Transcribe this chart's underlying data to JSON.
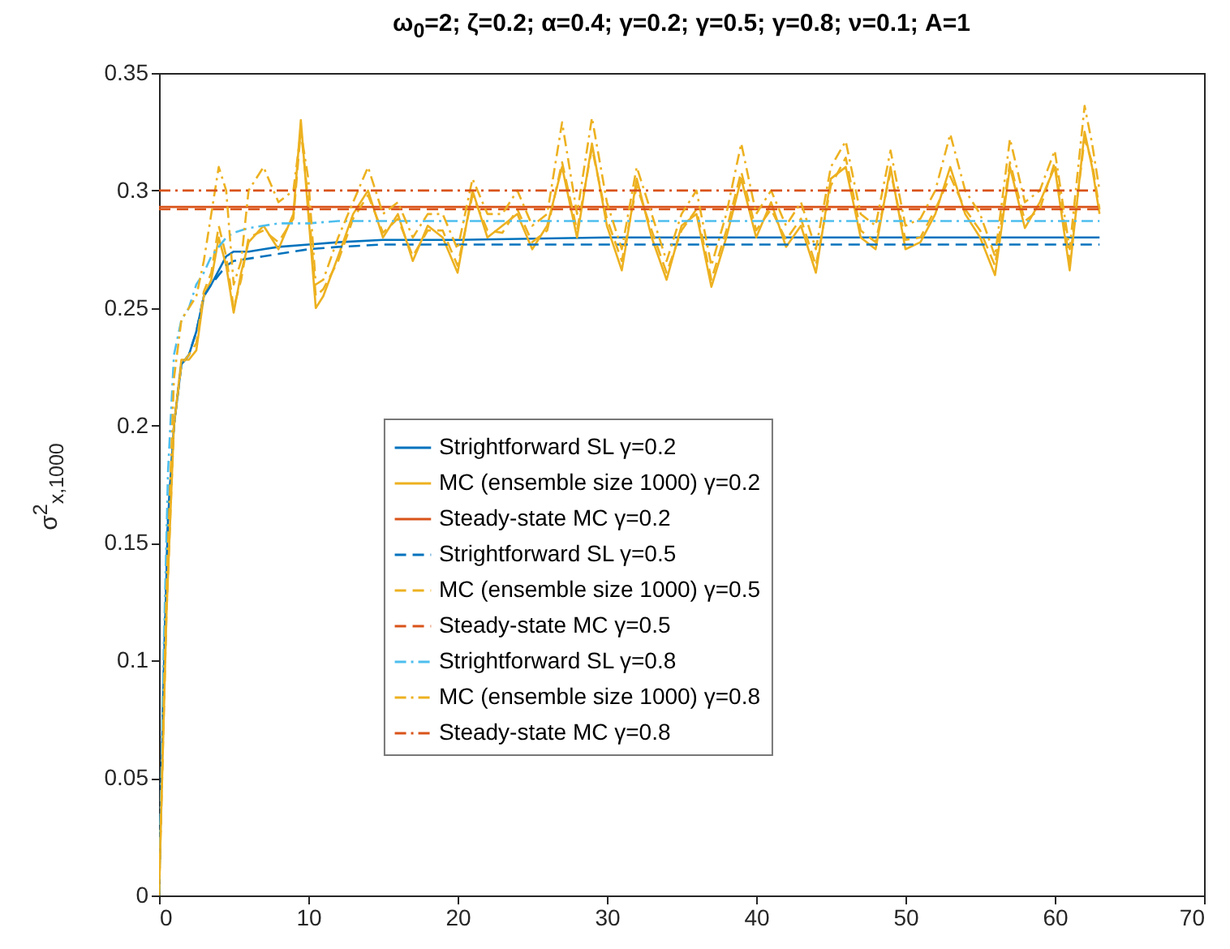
{
  "chart_data": {
    "type": "line",
    "title": "ω$_{0}$=2; ζ=0.2; α=0.4; γ=0.2; γ=0.5; γ=0.8; ν=0.1; A=1",
    "ylabel": "σ$^{2}$$_{x,1000}$",
    "xlim": [
      0,
      70
    ],
    "xticks": [
      0,
      10,
      20,
      30,
      40,
      50,
      60,
      70
    ],
    "ylim": [
      0,
      0.35
    ],
    "yticks": [
      0,
      0.05,
      0.1,
      0.15,
      0.2,
      0.25,
      0.3,
      0.35
    ],
    "grid": false,
    "legend": "bottom",
    "marker": "none",
    "series": [
      {
        "name": "Strightforward SL γ=0.2",
        "color": "#0072bd",
        "line_style": "solid",
        "x": [
          0,
          0.3,
          0.6,
          1,
          1.5,
          2,
          2.5,
          3,
          3.5,
          4,
          4.5,
          5,
          6,
          7,
          8,
          10,
          12,
          15,
          20,
          30,
          40,
          63
        ],
        "values": [
          0,
          0.09,
          0.16,
          0.2,
          0.226,
          0.23,
          0.24,
          0.255,
          0.26,
          0.266,
          0.272,
          0.274,
          0.274,
          0.275,
          0.276,
          0.277,
          0.278,
          0.279,
          0.279,
          0.28,
          0.28,
          0.28
        ]
      },
      {
        "name": "MC (ensemble size 1000) γ=0.2",
        "color": "#edb120",
        "line_style": "solid",
        "x": [
          0,
          0.5,
          1,
          1.5,
          2,
          2.5,
          3,
          3.5,
          4,
          4.5,
          5,
          5.5,
          6,
          7,
          8,
          9,
          9.5,
          10,
          10.5,
          11,
          12,
          13,
          14,
          15,
          16,
          17,
          18,
          19,
          20,
          21,
          22,
          23,
          24,
          25,
          26,
          27,
          28,
          29,
          30,
          31,
          32,
          33,
          34,
          35,
          36,
          37,
          38,
          39,
          40,
          41,
          42,
          43,
          44,
          45,
          46,
          47,
          48,
          49,
          50,
          51,
          52,
          53,
          54,
          55,
          56,
          57,
          58,
          59,
          60,
          61,
          62,
          62.5,
          63
        ],
        "values": [
          0,
          0.12,
          0.2,
          0.228,
          0.228,
          0.232,
          0.255,
          0.262,
          0.28,
          0.268,
          0.248,
          0.265,
          0.278,
          0.285,
          0.275,
          0.29,
          0.33,
          0.29,
          0.25,
          0.255,
          0.272,
          0.29,
          0.3,
          0.28,
          0.29,
          0.27,
          0.285,
          0.28,
          0.265,
          0.3,
          0.28,
          0.285,
          0.29,
          0.275,
          0.285,
          0.31,
          0.28,
          0.32,
          0.285,
          0.266,
          0.305,
          0.28,
          0.262,
          0.285,
          0.29,
          0.259,
          0.28,
          0.305,
          0.28,
          0.295,
          0.276,
          0.285,
          0.265,
          0.305,
          0.31,
          0.28,
          0.275,
          0.31,
          0.275,
          0.278,
          0.29,
          0.31,
          0.29,
          0.28,
          0.264,
          0.31,
          0.284,
          0.295,
          0.31,
          0.266,
          0.325,
          0.31,
          0.29
        ]
      },
      {
        "name": "Steady-state MC γ=0.2",
        "color": "#d95319",
        "line_style": "solid",
        "x": [
          0,
          63
        ],
        "values": [
          0.293,
          0.293
        ]
      },
      {
        "name": "Strightforward SL γ=0.5",
        "color": "#0072bd",
        "line_style": "dashed",
        "x": [
          0,
          0.3,
          0.6,
          1,
          1.5,
          2,
          2.5,
          3,
          3.5,
          4,
          4.5,
          5,
          6,
          7,
          8,
          10,
          12,
          15,
          20,
          30,
          40,
          63
        ],
        "values": [
          0,
          0.09,
          0.16,
          0.2,
          0.226,
          0.23,
          0.24,
          0.255,
          0.26,
          0.264,
          0.268,
          0.27,
          0.271,
          0.272,
          0.273,
          0.275,
          0.276,
          0.277,
          0.277,
          0.277,
          0.277,
          0.277
        ]
      },
      {
        "name": "MC (ensemble size 1000) γ=0.5",
        "color": "#edb120",
        "line_style": "dashed",
        "x": [
          0,
          0.5,
          1,
          1.5,
          2,
          2.5,
          3,
          3.5,
          4,
          4.5,
          5,
          5.5,
          6,
          7,
          8,
          9,
          9.5,
          10,
          10.5,
          11,
          12,
          13,
          14,
          15,
          16,
          17,
          18,
          19,
          20,
          21,
          22,
          23,
          24,
          25,
          26,
          27,
          28,
          29,
          30,
          31,
          32,
          33,
          34,
          35,
          36,
          37,
          38,
          39,
          40,
          41,
          42,
          43,
          44,
          45,
          46,
          47,
          48,
          49,
          50,
          51,
          52,
          53,
          54,
          55,
          56,
          57,
          58,
          59,
          60,
          61,
          62,
          62.5,
          63
        ],
        "values": [
          0,
          0.12,
          0.2,
          0.226,
          0.23,
          0.235,
          0.257,
          0.265,
          0.285,
          0.272,
          0.25,
          0.262,
          0.28,
          0.283,
          0.278,
          0.288,
          0.326,
          0.295,
          0.255,
          0.258,
          0.27,
          0.288,
          0.298,
          0.282,
          0.288,
          0.272,
          0.283,
          0.283,
          0.268,
          0.298,
          0.283,
          0.282,
          0.292,
          0.278,
          0.283,
          0.312,
          0.283,
          0.318,
          0.288,
          0.27,
          0.302,
          0.283,
          0.265,
          0.283,
          0.292,
          0.262,
          0.283,
          0.308,
          0.283,
          0.292,
          0.279,
          0.288,
          0.268,
          0.302,
          0.314,
          0.283,
          0.278,
          0.308,
          0.279,
          0.28,
          0.292,
          0.306,
          0.292,
          0.283,
          0.268,
          0.312,
          0.287,
          0.292,
          0.312,
          0.27,
          0.322,
          0.312,
          0.292
        ]
      },
      {
        "name": "Steady-state MC γ=0.5",
        "color": "#d95319",
        "line_style": "dashed",
        "x": [
          0,
          63
        ],
        "values": [
          0.292,
          0.292
        ]
      },
      {
        "name": "Strightforward SL γ=0.8",
        "color": "#4dbeee",
        "line_style": "dashdot",
        "x": [
          0,
          0.3,
          0.6,
          1,
          1.5,
          2,
          2.5,
          3,
          3.5,
          4,
          4.5,
          5,
          6,
          7,
          8,
          10,
          12,
          15,
          20,
          30,
          40,
          63
        ],
        "values": [
          0,
          0.1,
          0.18,
          0.23,
          0.245,
          0.25,
          0.26,
          0.265,
          0.272,
          0.276,
          0.28,
          0.282,
          0.284,
          0.285,
          0.286,
          0.286,
          0.287,
          0.287,
          0.287,
          0.287,
          0.287,
          0.287
        ]
      },
      {
        "name": "MC (ensemble size 1000) γ=0.8",
        "color": "#edb120",
        "line_style": "dashdot",
        "x": [
          0,
          0.5,
          1,
          1.5,
          2,
          2.5,
          3,
          3.5,
          4,
          4.5,
          5,
          5.5,
          6,
          7,
          8,
          9,
          9.5,
          10,
          10.5,
          11,
          12,
          13,
          14,
          15,
          16,
          17,
          18,
          19,
          20,
          21,
          22,
          23,
          24,
          25,
          26,
          27,
          28,
          29,
          30,
          31,
          32,
          33,
          34,
          35,
          36,
          37,
          38,
          39,
          40,
          41,
          42,
          43,
          44,
          45,
          46,
          47,
          48,
          49,
          50,
          51,
          52,
          53,
          54,
          55,
          56,
          57,
          58,
          59,
          60,
          61,
          62,
          62.5,
          63
        ],
        "values": [
          0,
          0.13,
          0.22,
          0.245,
          0.25,
          0.255,
          0.27,
          0.29,
          0.31,
          0.3,
          0.26,
          0.27,
          0.3,
          0.31,
          0.295,
          0.3,
          0.325,
          0.305,
          0.26,
          0.262,
          0.28,
          0.295,
          0.31,
          0.29,
          0.295,
          0.28,
          0.29,
          0.29,
          0.275,
          0.305,
          0.29,
          0.29,
          0.3,
          0.285,
          0.29,
          0.329,
          0.29,
          0.331,
          0.295,
          0.275,
          0.31,
          0.29,
          0.27,
          0.29,
          0.3,
          0.268,
          0.29,
          0.32,
          0.29,
          0.3,
          0.285,
          0.295,
          0.275,
          0.31,
          0.321,
          0.29,
          0.285,
          0.317,
          0.285,
          0.288,
          0.3,
          0.324,
          0.3,
          0.29,
          0.272,
          0.322,
          0.295,
          0.3,
          0.317,
          0.275,
          0.336,
          0.32,
          0.3
        ]
      },
      {
        "name": "Steady-state MC γ=0.8",
        "color": "#d95319",
        "line_style": "dashdot",
        "x": [
          0,
          63
        ],
        "values": [
          0.3,
          0.3
        ]
      }
    ]
  }
}
